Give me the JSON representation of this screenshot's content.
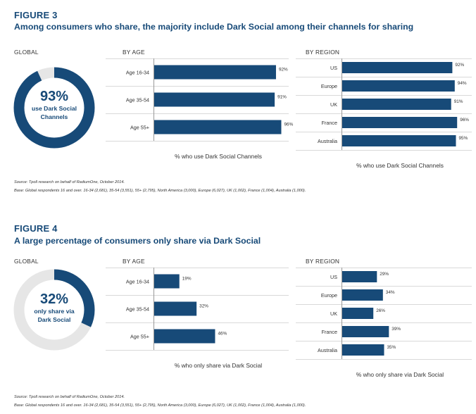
{
  "figures": [
    {
      "label": "FIGURE 3",
      "title": "Among consumers who share, the majority include Dark Social among their channels for sharing",
      "global_label": "GLOBAL",
      "donut": {
        "percent_text": "93%",
        "line1": "use Dark Social",
        "line2": "Channels",
        "value": 93
      },
      "age_label": "BY AGE",
      "region_label": "BY REGION",
      "age_caption": "% who use Dark Social Channels",
      "region_caption": "% who use Dark Social Channels",
      "source": "Source: Tpoll research on behalf of RadiumOne, October 2014.",
      "base": "Base: Global respondents 16 and over. 16-34 (2,681), 35-54 (3,551), 55+ (2,795), North America (3,000), Europe (6,027), UK (1,002), France (1,004), Australia (1,000)."
    },
    {
      "label": "FIGURE 4",
      "title": "A large percentage of consumers only share via Dark Social",
      "global_label": "GLOBAL",
      "donut": {
        "percent_text": "32%",
        "line1": "only share via",
        "line2": "Dark Social",
        "value": 32
      },
      "age_label": "BY AGE",
      "region_label": "BY REGION",
      "age_caption": "% who only share via Dark Social",
      "region_caption": "% who only share via Dark Social",
      "source": "Source: Tpoll research on behalf of RadiumOne, October 2014.",
      "base": "Base: Global respondents 16 and over. 16-34 (2,681), 35-54 (3,551), 55+ (2,795), North America (3,000), Europe (6,027), UK (1,002), France (1,004), Australia (1,000)."
    }
  ],
  "colors": {
    "bar": "#174a78",
    "donut_track": "#e6e6e6",
    "title": "#174a78",
    "grid": "#d9d9d9"
  },
  "chart_data": [
    {
      "type": "pie",
      "values": [
        93,
        7
      ],
      "categories": [
        "use Dark Social Channels",
        ""
      ]
    },
    {
      "type": "bar",
      "orientation": "horizontal",
      "categories": [
        "Age 16-34",
        "Age 35-54",
        "Age 55+"
      ],
      "values": [
        92,
        91,
        96
      ],
      "value_labels": [
        "92%",
        "91%",
        "96%"
      ],
      "xlabel": "% who use Dark Social Channels",
      "xlim": [
        0,
        100
      ],
      "grid": true
    },
    {
      "type": "bar",
      "orientation": "horizontal",
      "categories": [
        "US",
        "Europe",
        "UK",
        "France",
        "Australia"
      ],
      "values": [
        92,
        94,
        91,
        96,
        95
      ],
      "value_labels": [
        "92%",
        "94%",
        "91%",
        "96%",
        "95%"
      ],
      "xlabel": "% who use Dark Social Channels",
      "xlim": [
        0,
        100
      ],
      "grid": true
    },
    {
      "type": "pie",
      "values": [
        32,
        68
      ],
      "categories": [
        "only share via Dark Social",
        ""
      ]
    },
    {
      "type": "bar",
      "orientation": "horizontal",
      "categories": [
        "Age 16-34",
        "Age 35-54",
        "Age 55+"
      ],
      "values": [
        19,
        32,
        46
      ],
      "value_labels": [
        "19%",
        "32%",
        "46%"
      ],
      "xlabel": "% who only share via Dark Social",
      "xlim": [
        0,
        100
      ],
      "grid": true
    },
    {
      "type": "bar",
      "orientation": "horizontal",
      "categories": [
        "US",
        "Europe",
        "UK",
        "France",
        "Australia"
      ],
      "values": [
        29,
        34,
        26,
        39,
        35
      ],
      "value_labels": [
        "29%",
        "34%",
        "26%",
        "39%",
        "35%"
      ],
      "xlabel": "% who only share via Dark Social",
      "xlim": [
        0,
        100
      ],
      "grid": true
    }
  ]
}
